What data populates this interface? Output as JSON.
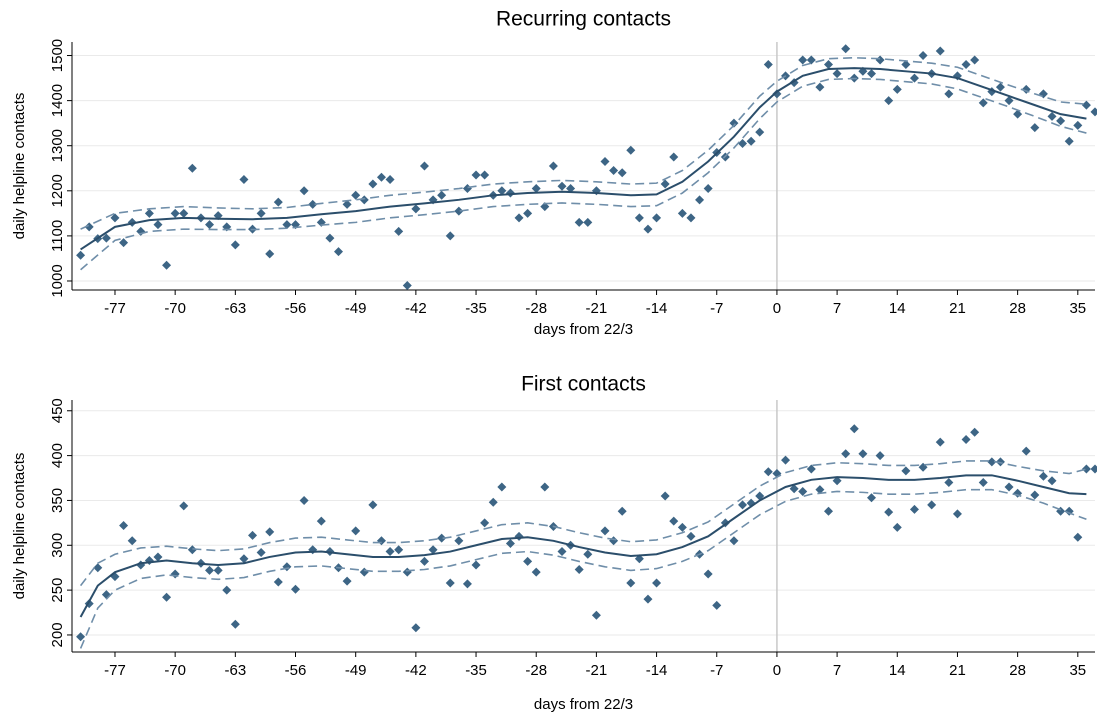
{
  "chart_data": [
    {
      "type": "scatter",
      "title": "Recurring contacts",
      "xlabel": "days from 22/3",
      "ylabel": "daily helpline contacts",
      "xlim": [
        -82,
        37
      ],
      "ylim": [
        980,
        1530
      ],
      "xticks": [
        -77,
        -70,
        -63,
        -56,
        -49,
        -42,
        -35,
        -28,
        -21,
        -14,
        -7,
        0,
        7,
        14,
        21,
        28,
        35
      ],
      "yticks": [
        1000,
        1100,
        1200,
        1300,
        1400,
        1500
      ],
      "grid": true,
      "xline": 0,
      "series": [
        {
          "mode": "markers",
          "color": "#3d6585",
          "x": [
            -81,
            -80,
            -79,
            -78,
            -77,
            -76,
            -75,
            -74,
            -73,
            -72,
            -71,
            -70,
            -69,
            -68,
            -67,
            -66,
            -65,
            -64,
            -63,
            -62,
            -61,
            -60,
            -59,
            -58,
            -57,
            -56,
            -55,
            -54,
            -53,
            -52,
            -51,
            -50,
            -49,
            -48,
            -47,
            -46,
            -45,
            -44,
            -43,
            -42,
            -41,
            -40,
            -39,
            -38,
            -37,
            -36,
            -35,
            -34,
            -33,
            -32,
            -31,
            -30,
            -29,
            -28,
            -27,
            -26,
            -25,
            -24,
            -23,
            -22,
            -21,
            -20,
            -19,
            -18,
            -17,
            -16,
            -15,
            -14,
            -13,
            -12,
            -11,
            -10,
            -9,
            -8,
            -7,
            -6,
            -5,
            -4,
            -3,
            -2,
            -1,
            0,
            1,
            2,
            3,
            4,
            5,
            6,
            7,
            8,
            9,
            10,
            11,
            12,
            13,
            14,
            15,
            16,
            17,
            18,
            19,
            20,
            21,
            22,
            23,
            24,
            25,
            26,
            27,
            28,
            29,
            30,
            31,
            32,
            33,
            34,
            35,
            36,
            37
          ],
          "values": [
            1057,
            1120,
            1094,
            1095,
            1140,
            1085,
            1130,
            1110,
            1150,
            1125,
            1035,
            1150,
            1150,
            1250,
            1140,
            1125,
            1145,
            1120,
            1080,
            1225,
            1115,
            1150,
            1060,
            1175,
            1125,
            1125,
            1200,
            1170,
            1130,
            1095,
            1065,
            1170,
            1190,
            1180,
            1215,
            1230,
            1225,
            1110,
            990,
            1160,
            1255,
            1180,
            1190,
            1100,
            1155,
            1205,
            1235,
            1235,
            1190,
            1200,
            1195,
            1140,
            1150,
            1205,
            1165,
            1255,
            1210,
            1205,
            1130,
            1130,
            1200,
            1265,
            1245,
            1240,
            1290,
            1140,
            1115,
            1140,
            1215,
            1275,
            1150,
            1140,
            1180,
            1205,
            1285,
            1275,
            1350,
            1305,
            1310,
            1330,
            1480,
            1415,
            1455,
            1440,
            1490,
            1490,
            1430,
            1480,
            1460,
            1515,
            1450,
            1465,
            1460,
            1490,
            1400,
            1425,
            1480,
            1450,
            1500,
            1460,
            1510,
            1415,
            1455,
            1480,
            1490,
            1395,
            1420,
            1430,
            1400,
            1370,
            1425,
            1340,
            1415,
            1365,
            1355,
            1310,
            1345,
            1390,
            1375
          ]
        },
        {
          "mode": "line",
          "color": "#2b4e6b",
          "x": [
            -81,
            -77,
            -73,
            -69,
            -65,
            -61,
            -57,
            -53,
            -49,
            -45,
            -41,
            -37,
            -33,
            -29,
            -25,
            -21,
            -17,
            -14,
            -11,
            -8,
            -5,
            -2,
            0,
            3,
            6,
            9,
            12,
            15,
            18,
            21,
            24,
            27,
            30,
            33,
            36
          ],
          "values": [
            1070,
            1120,
            1135,
            1140,
            1138,
            1137,
            1140,
            1148,
            1155,
            1165,
            1172,
            1180,
            1190,
            1195,
            1198,
            1195,
            1190,
            1192,
            1220,
            1265,
            1320,
            1385,
            1420,
            1455,
            1470,
            1472,
            1470,
            1465,
            1460,
            1450,
            1430,
            1410,
            1390,
            1370,
            1360
          ]
        },
        {
          "mode": "line",
          "dash": true,
          "color": "#6f8ea9",
          "x": [
            -81,
            -77,
            -73,
            -69,
            -65,
            -61,
            -57,
            -53,
            -49,
            -45,
            -41,
            -37,
            -33,
            -29,
            -25,
            -21,
            -17,
            -14,
            -11,
            -8,
            -5,
            -2,
            0,
            3,
            6,
            9,
            12,
            15,
            18,
            21,
            24,
            27,
            30,
            33,
            36
          ],
          "values": [
            1115,
            1150,
            1160,
            1165,
            1162,
            1160,
            1163,
            1172,
            1180,
            1190,
            1197,
            1205,
            1215,
            1220,
            1223,
            1220,
            1215,
            1217,
            1245,
            1290,
            1345,
            1410,
            1443,
            1478,
            1493,
            1495,
            1493,
            1488,
            1483,
            1474,
            1454,
            1434,
            1415,
            1397,
            1392
          ]
        },
        {
          "mode": "line",
          "dash": true,
          "color": "#6f8ea9",
          "x": [
            -81,
            -77,
            -73,
            -69,
            -65,
            -61,
            -57,
            -53,
            -49,
            -45,
            -41,
            -37,
            -33,
            -29,
            -25,
            -21,
            -17,
            -14,
            -11,
            -8,
            -5,
            -2,
            0,
            3,
            6,
            9,
            12,
            15,
            18,
            21,
            24,
            27,
            30,
            33,
            36
          ],
          "values": [
            1025,
            1090,
            1110,
            1115,
            1114,
            1114,
            1117,
            1124,
            1130,
            1140,
            1147,
            1155,
            1165,
            1170,
            1173,
            1170,
            1165,
            1167,
            1195,
            1240,
            1295,
            1360,
            1397,
            1432,
            1447,
            1449,
            1447,
            1442,
            1437,
            1426,
            1406,
            1386,
            1365,
            1343,
            1328
          ]
        }
      ]
    },
    {
      "type": "scatter",
      "title": "First contacts",
      "xlabel": "days from 22/3",
      "ylabel": "daily helpline contacts",
      "xlim": [
        -82,
        37
      ],
      "ylim": [
        181,
        462
      ],
      "xticks": [
        -77,
        -70,
        -63,
        -56,
        -49,
        -42,
        -35,
        -28,
        -21,
        -14,
        -7,
        0,
        7,
        14,
        21,
        28,
        35
      ],
      "yticks": [
        200,
        250,
        300,
        350,
        400,
        450
      ],
      "grid": true,
      "xline": 0,
      "series": [
        {
          "mode": "markers",
          "color": "#3d6585",
          "x": [
            -81,
            -80,
            -79,
            -78,
            -77,
            -76,
            -75,
            -74,
            -73,
            -72,
            -71,
            -70,
            -69,
            -68,
            -67,
            -66,
            -65,
            -64,
            -63,
            -62,
            -61,
            -60,
            -59,
            -58,
            -57,
            -56,
            -55,
            -54,
            -53,
            -52,
            -51,
            -50,
            -49,
            -48,
            -47,
            -46,
            -45,
            -44,
            -43,
            -42,
            -41,
            -40,
            -39,
            -38,
            -37,
            -36,
            -35,
            -34,
            -33,
            -32,
            -31,
            -30,
            -29,
            -28,
            -27,
            -26,
            -25,
            -24,
            -23,
            -22,
            -21,
            -20,
            -19,
            -18,
            -17,
            -16,
            -15,
            -14,
            -13,
            -12,
            -11,
            -10,
            -9,
            -8,
            -7,
            -6,
            -5,
            -4,
            -3,
            -2,
            -1,
            0,
            1,
            2,
            3,
            4,
            5,
            6,
            7,
            8,
            9,
            10,
            11,
            12,
            13,
            14,
            15,
            16,
            17,
            18,
            19,
            20,
            21,
            22,
            23,
            24,
            25,
            26,
            27,
            28,
            29,
            30,
            31,
            32,
            33,
            34,
            35,
            36,
            37
          ],
          "values": [
            198,
            235,
            275,
            245,
            265,
            322,
            305,
            278,
            283,
            287,
            242,
            268,
            344,
            295,
            280,
            272,
            272,
            250,
            212,
            285,
            311,
            292,
            315,
            259,
            276,
            251,
            350,
            295,
            327,
            293,
            275,
            260,
            316,
            270,
            345,
            305,
            293,
            295,
            270,
            208,
            282,
            295,
            308,
            258,
            305,
            257,
            278,
            325,
            348,
            365,
            302,
            310,
            282,
            270,
            365,
            321,
            293,
            300,
            273,
            290,
            222,
            316,
            305,
            338,
            258,
            285,
            240,
            258,
            355,
            327,
            320,
            310,
            290,
            268,
            233,
            325,
            305,
            345,
            347,
            355,
            382,
            380,
            395,
            363,
            360,
            385,
            362,
            338,
            372,
            402,
            430,
            402,
            353,
            400,
            337,
            320,
            383,
            340,
            387,
            345,
            415,
            370,
            335,
            418,
            426,
            370,
            393,
            393,
            365,
            358,
            405,
            356,
            377,
            372,
            338,
            338,
            309,
            385,
            385
          ]
        },
        {
          "mode": "line",
          "color": "#2b4e6b",
          "x": [
            -81,
            -79,
            -77,
            -74,
            -71,
            -68,
            -65,
            -62,
            -59,
            -56,
            -53,
            -50,
            -47,
            -44,
            -41,
            -38,
            -35,
            -32,
            -29,
            -26,
            -23,
            -20,
            -17,
            -14,
            -11,
            -8,
            -5,
            -2,
            1,
            4,
            7,
            10,
            13,
            16,
            19,
            22,
            25,
            28,
            31,
            34,
            36
          ],
          "values": [
            220,
            255,
            270,
            280,
            283,
            280,
            278,
            280,
            287,
            292,
            293,
            290,
            287,
            287,
            289,
            293,
            300,
            307,
            309,
            305,
            298,
            292,
            288,
            290,
            298,
            310,
            330,
            350,
            365,
            373,
            376,
            375,
            373,
            373,
            375,
            378,
            378,
            372,
            365,
            358,
            357
          ]
        },
        {
          "mode": "line",
          "dash": true,
          "color": "#6f8ea9",
          "x": [
            -81,
            -79,
            -77,
            -74,
            -71,
            -68,
            -65,
            -62,
            -59,
            -56,
            -53,
            -50,
            -47,
            -44,
            -41,
            -38,
            -35,
            -32,
            -29,
            -26,
            -23,
            -20,
            -17,
            -14,
            -11,
            -8,
            -5,
            -2,
            1,
            4,
            7,
            10,
            13,
            16,
            19,
            22,
            25,
            28,
            31,
            34,
            36
          ],
          "values": [
            255,
            280,
            290,
            297,
            299,
            296,
            294,
            296,
            303,
            308,
            309,
            306,
            303,
            303,
            305,
            309,
            316,
            323,
            325,
            321,
            314,
            308,
            304,
            306,
            314,
            326,
            346,
            366,
            381,
            389,
            392,
            391,
            389,
            389,
            391,
            394,
            394,
            388,
            383,
            380,
            385
          ]
        },
        {
          "mode": "line",
          "dash": true,
          "color": "#6f8ea9",
          "x": [
            -81,
            -79,
            -77,
            -74,
            -71,
            -68,
            -65,
            -62,
            -59,
            -56,
            -53,
            -50,
            -47,
            -44,
            -41,
            -38,
            -35,
            -32,
            -29,
            -26,
            -23,
            -20,
            -17,
            -14,
            -11,
            -8,
            -5,
            -2,
            1,
            4,
            7,
            10,
            13,
            16,
            19,
            22,
            25,
            28,
            31,
            34,
            36
          ],
          "values": [
            185,
            230,
            250,
            263,
            267,
            264,
            262,
            264,
            271,
            276,
            277,
            274,
            271,
            271,
            273,
            277,
            284,
            291,
            293,
            289,
            282,
            276,
            272,
            274,
            282,
            294,
            314,
            334,
            349,
            357,
            360,
            359,
            357,
            357,
            359,
            362,
            362,
            356,
            347,
            336,
            329
          ]
        }
      ]
    }
  ]
}
